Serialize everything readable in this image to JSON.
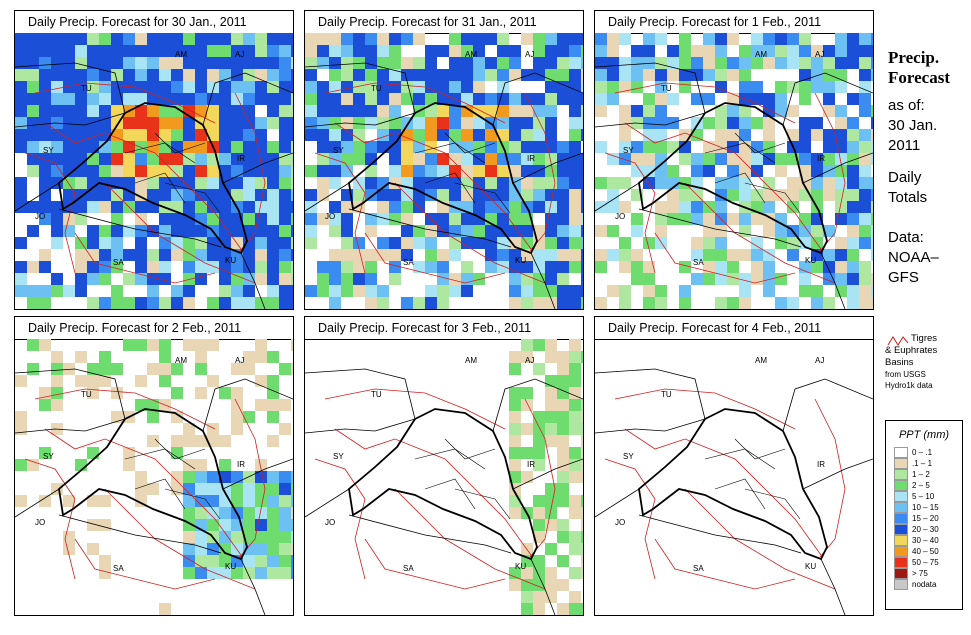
{
  "panels": [
    {
      "title": "Daily Precip. Forecast for  30 Jan., 2011",
      "level": 4
    },
    {
      "title": "Daily Precip. Forecast for  31 Jan., 2011",
      "level": 3
    },
    {
      "title": "Daily Precip. Forecast for  1 Feb., 2011",
      "level": 2
    },
    {
      "title": "Daily Precip. Forecast for  2 Feb., 2011",
      "level": 2
    },
    {
      "title": "Daily Precip. Forecast for  3 Feb., 2011",
      "level": 1
    },
    {
      "title": "Daily Precip. Forecast for  4 Feb., 2011",
      "level": 0
    }
  ],
  "map_labels": [
    "AM",
    "AJ",
    "TU",
    "SY",
    "IR",
    "JO",
    "SA",
    "KU"
  ],
  "side": {
    "heading1": "Precip.",
    "heading2": "Forecast",
    "asof": "as of:",
    "date1": "30 Jan.",
    "date2": "2011",
    "daily1": "Daily",
    "daily2": "Totals",
    "data1": "Data:",
    "data2": "NOAA–",
    "data3": "GFS"
  },
  "basin_note": {
    "line1": "Tigres",
    "line2": "& Euphrates",
    "line3": "Basins",
    "line4": "from USGS",
    "line5": "Hydro1k data"
  },
  "legend": {
    "title": "PPT (mm)",
    "items": [
      {
        "label": "0 – .1",
        "color": "#ffffff"
      },
      {
        "label": ".1 – 1",
        "color": "#e8d6b4"
      },
      {
        "label": "1 – 2",
        "color": "#aee8a0"
      },
      {
        "label": "2 – 5",
        "color": "#6fdc6f"
      },
      {
        "label": "5 – 10",
        "color": "#a8e4f4"
      },
      {
        "label": "10 – 15",
        "color": "#6cc0f2"
      },
      {
        "label": "15 – 20",
        "color": "#3b8cf0"
      },
      {
        "label": "20 – 30",
        "color": "#1c4fd8"
      },
      {
        "label": "30 – 40",
        "color": "#f2d75a"
      },
      {
        "label": "40 – 50",
        "color": "#f29a1e"
      },
      {
        "label": "50 – 75",
        "color": "#e8321a"
      },
      {
        "label": "> 75",
        "color": "#9c1a10"
      },
      {
        "label": "nodata",
        "color": "#c8c8c8"
      }
    ]
  }
}
